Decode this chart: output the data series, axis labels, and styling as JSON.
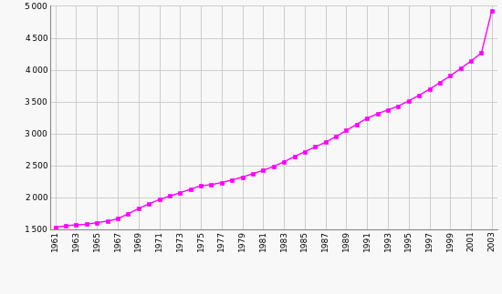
{
  "years": [
    1961,
    1962,
    1963,
    1964,
    1965,
    1966,
    1967,
    1968,
    1969,
    1970,
    1971,
    1972,
    1973,
    1974,
    1975,
    1976,
    1977,
    1978,
    1979,
    1980,
    1981,
    1982,
    1983,
    1984,
    1985,
    1986,
    1987,
    1988,
    1989,
    1990,
    1991,
    1992,
    1993,
    1994,
    1995,
    1996,
    1997,
    1998,
    1999,
    2000,
    2001,
    2002,
    2003
  ],
  "population": [
    1530,
    1555,
    1571,
    1578,
    1606,
    1628,
    1665,
    1742,
    1827,
    1897,
    1966,
    2020,
    2073,
    2128,
    2183,
    2198,
    2233,
    2272,
    2318,
    2370,
    2424,
    2484,
    2558,
    2637,
    2716,
    2790,
    2865,
    2953,
    3048,
    3145,
    3240,
    3310,
    3370,
    3430,
    3512,
    3599,
    3694,
    3797,
    3904,
    4018,
    4136,
    4261,
    4923
  ],
  "line_color": "#FF00FF",
  "marker_color": "#FF00FF",
  "bg_color": "#f8f8f8",
  "grid_color": "#cccccc",
  "ylim": [
    1500,
    5000
  ],
  "yticks": [
    1500,
    2000,
    2500,
    3000,
    3500,
    4000,
    4500,
    5000
  ],
  "xlim_start": 1961,
  "xlim_end": 2003
}
